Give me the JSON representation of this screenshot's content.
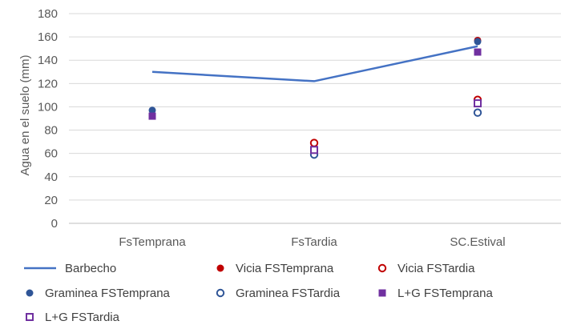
{
  "chart_data": {
    "type": "line",
    "categories": [
      "FsTemprana",
      "FsTardia",
      "SC.Estival"
    ],
    "title": "",
    "xlabel": "",
    "ylabel": "Agua en el suelo (mm)",
    "ylim": [
      0,
      180
    ],
    "yticks": [
      0,
      20,
      40,
      60,
      80,
      100,
      120,
      140,
      160,
      180
    ],
    "grid": true,
    "legend_position": "bottom",
    "series": [
      {
        "name": "Barbecho",
        "kind": "line",
        "color": "#4472C4",
        "values": [
          130,
          122,
          152
        ]
      },
      {
        "name": "Vicia FSTemprana",
        "kind": "marker",
        "marker": "circle-filled",
        "color": "#C00000",
        "values": [
          null,
          null,
          157
        ]
      },
      {
        "name": "Vicia FSTardia",
        "kind": "marker",
        "marker": "circle-open",
        "color": "#C00000",
        "values": [
          null,
          69,
          106
        ]
      },
      {
        "name": "Graminea FSTemprana",
        "kind": "marker",
        "marker": "circle-filled",
        "color": "#2F5597",
        "values": [
          97,
          null,
          156
        ]
      },
      {
        "name": "Graminea FSTardia",
        "kind": "marker",
        "marker": "circle-open",
        "color": "#2F5597",
        "values": [
          null,
          59,
          95
        ]
      },
      {
        "name": "L+G FSTemprana",
        "kind": "marker",
        "marker": "square-filled",
        "color": "#7030A0",
        "values": [
          92,
          null,
          147
        ]
      },
      {
        "name": "L+G FSTardia",
        "kind": "marker",
        "marker": "square-open",
        "color": "#7030A0",
        "values": [
          null,
          63,
          103
        ]
      }
    ]
  }
}
